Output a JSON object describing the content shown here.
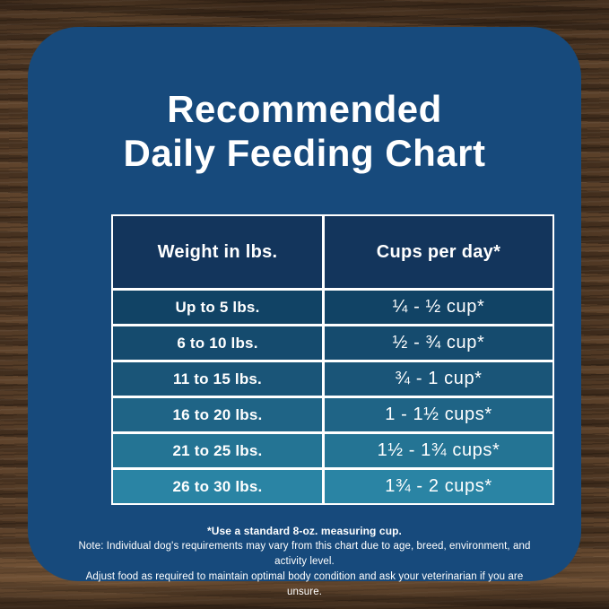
{
  "title": {
    "line1": "Recommended",
    "line2": "Daily Feeding Chart"
  },
  "table": {
    "headers": {
      "weight": "Weight in lbs.",
      "cups": "Cups per day*"
    },
    "rows": [
      {
        "weight": "Up to 5 lbs.",
        "cups": "¼ - ½ cup*",
        "color": "#114365"
      },
      {
        "weight": "6 to 10 lbs.",
        "cups": "½ - ¾ cup*",
        "color": "#154b6e"
      },
      {
        "weight": "11 to 15 lbs.",
        "cups": "¾ - 1 cup*",
        "color": "#1a5578"
      },
      {
        "weight": "16 to 20 lbs.",
        "cups": "1 - 1½ cups*",
        "color": "#1f6486"
      },
      {
        "weight": "21 to 25 lbs.",
        "cups": "1½ - 1¾ cups*",
        "color": "#247494"
      },
      {
        "weight": "26 to 30 lbs.",
        "cups": "1¾ - 2 cups*",
        "color": "#2a84a4"
      }
    ]
  },
  "footnote": {
    "line1": "*Use a standard 8-oz. measuring cup.",
    "line2": "Note: Individual dog's requirements may vary from this chart due to age, breed, environment, and activity level.",
    "line3": "Adjust food as required to maintain optimal body condition and ask your veterinarian if you are unsure."
  },
  "colors": {
    "panel": "#174a7c",
    "header_cell": "#13355c",
    "table_border": "#ffffff",
    "text": "#ffffff"
  },
  "chart_data": {
    "type": "table",
    "title": "Recommended Daily Feeding Chart",
    "columns": [
      "Weight in lbs.",
      "Cups per day*"
    ],
    "rows": [
      [
        "Up to 5 lbs.",
        "¼ - ½ cup*"
      ],
      [
        "6 to 10 lbs.",
        "½ - ¾ cup*"
      ],
      [
        "11 to 15 lbs.",
        "¾ - 1 cup*"
      ],
      [
        "16 to 20 lbs.",
        "1 - 1½ cups*"
      ],
      [
        "21 to 25 lbs.",
        "1½ - 1¾ cups*"
      ],
      [
        "26 to 30 lbs.",
        "1¾ - 2 cups*"
      ]
    ],
    "notes": [
      "*Use a standard 8-oz. measuring cup.",
      "Note: Individual dog's requirements may vary from this chart due to age, breed, environment, and activity level.",
      "Adjust food as required to maintain optimal body condition and ask your veterinarian if you are unsure."
    ]
  }
}
